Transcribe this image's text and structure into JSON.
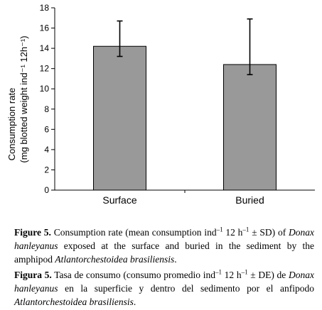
{
  "chart_data": {
    "type": "bar",
    "categories": [
      "Surface",
      "Buried"
    ],
    "values": [
      14.2,
      12.4
    ],
    "error_upper": [
      2.5,
      4.5
    ],
    "error_lower": [
      1.0,
      1.0
    ],
    "ylim": [
      0,
      18
    ],
    "yticks": [
      "0",
      "2",
      "4",
      "6",
      "8",
      "10",
      "12",
      "14",
      "16",
      "18"
    ],
    "ylabel_line1": "Consumption rate",
    "ylabel_line2": "(mg blotted weight ind⁻¹ 12h⁻¹)",
    "bar_color": "#999999",
    "grid": false
  },
  "caption_en": {
    "label": "Figure 5.",
    "text1": " Consumption rate (mean consumption ind",
    "sup1": "–1",
    "text2": " 12 h",
    "sup2": "–1",
    "text3": " ± SD) of ",
    "species": "Donax hanleyanus",
    "text4": " exposed at the surface and buried in the sediment by the amphipod ",
    "amphipod": "Atlantorchestoidea brasiliensis",
    "text5": "."
  },
  "caption_es": {
    "label": "Figura 5.",
    "text1": " Tasa de consumo (consumo promedio ind",
    "sup1": "–1",
    "text2": " 12 h",
    "sup2": "–1",
    "text3": " ± DE) de ",
    "species": "Donax hanleyanus",
    "text4": " en la superficie y dentro del sedimento por el anfipodo ",
    "amphipod": "Atlantorchestoidea brasiliensis",
    "text5": "."
  }
}
